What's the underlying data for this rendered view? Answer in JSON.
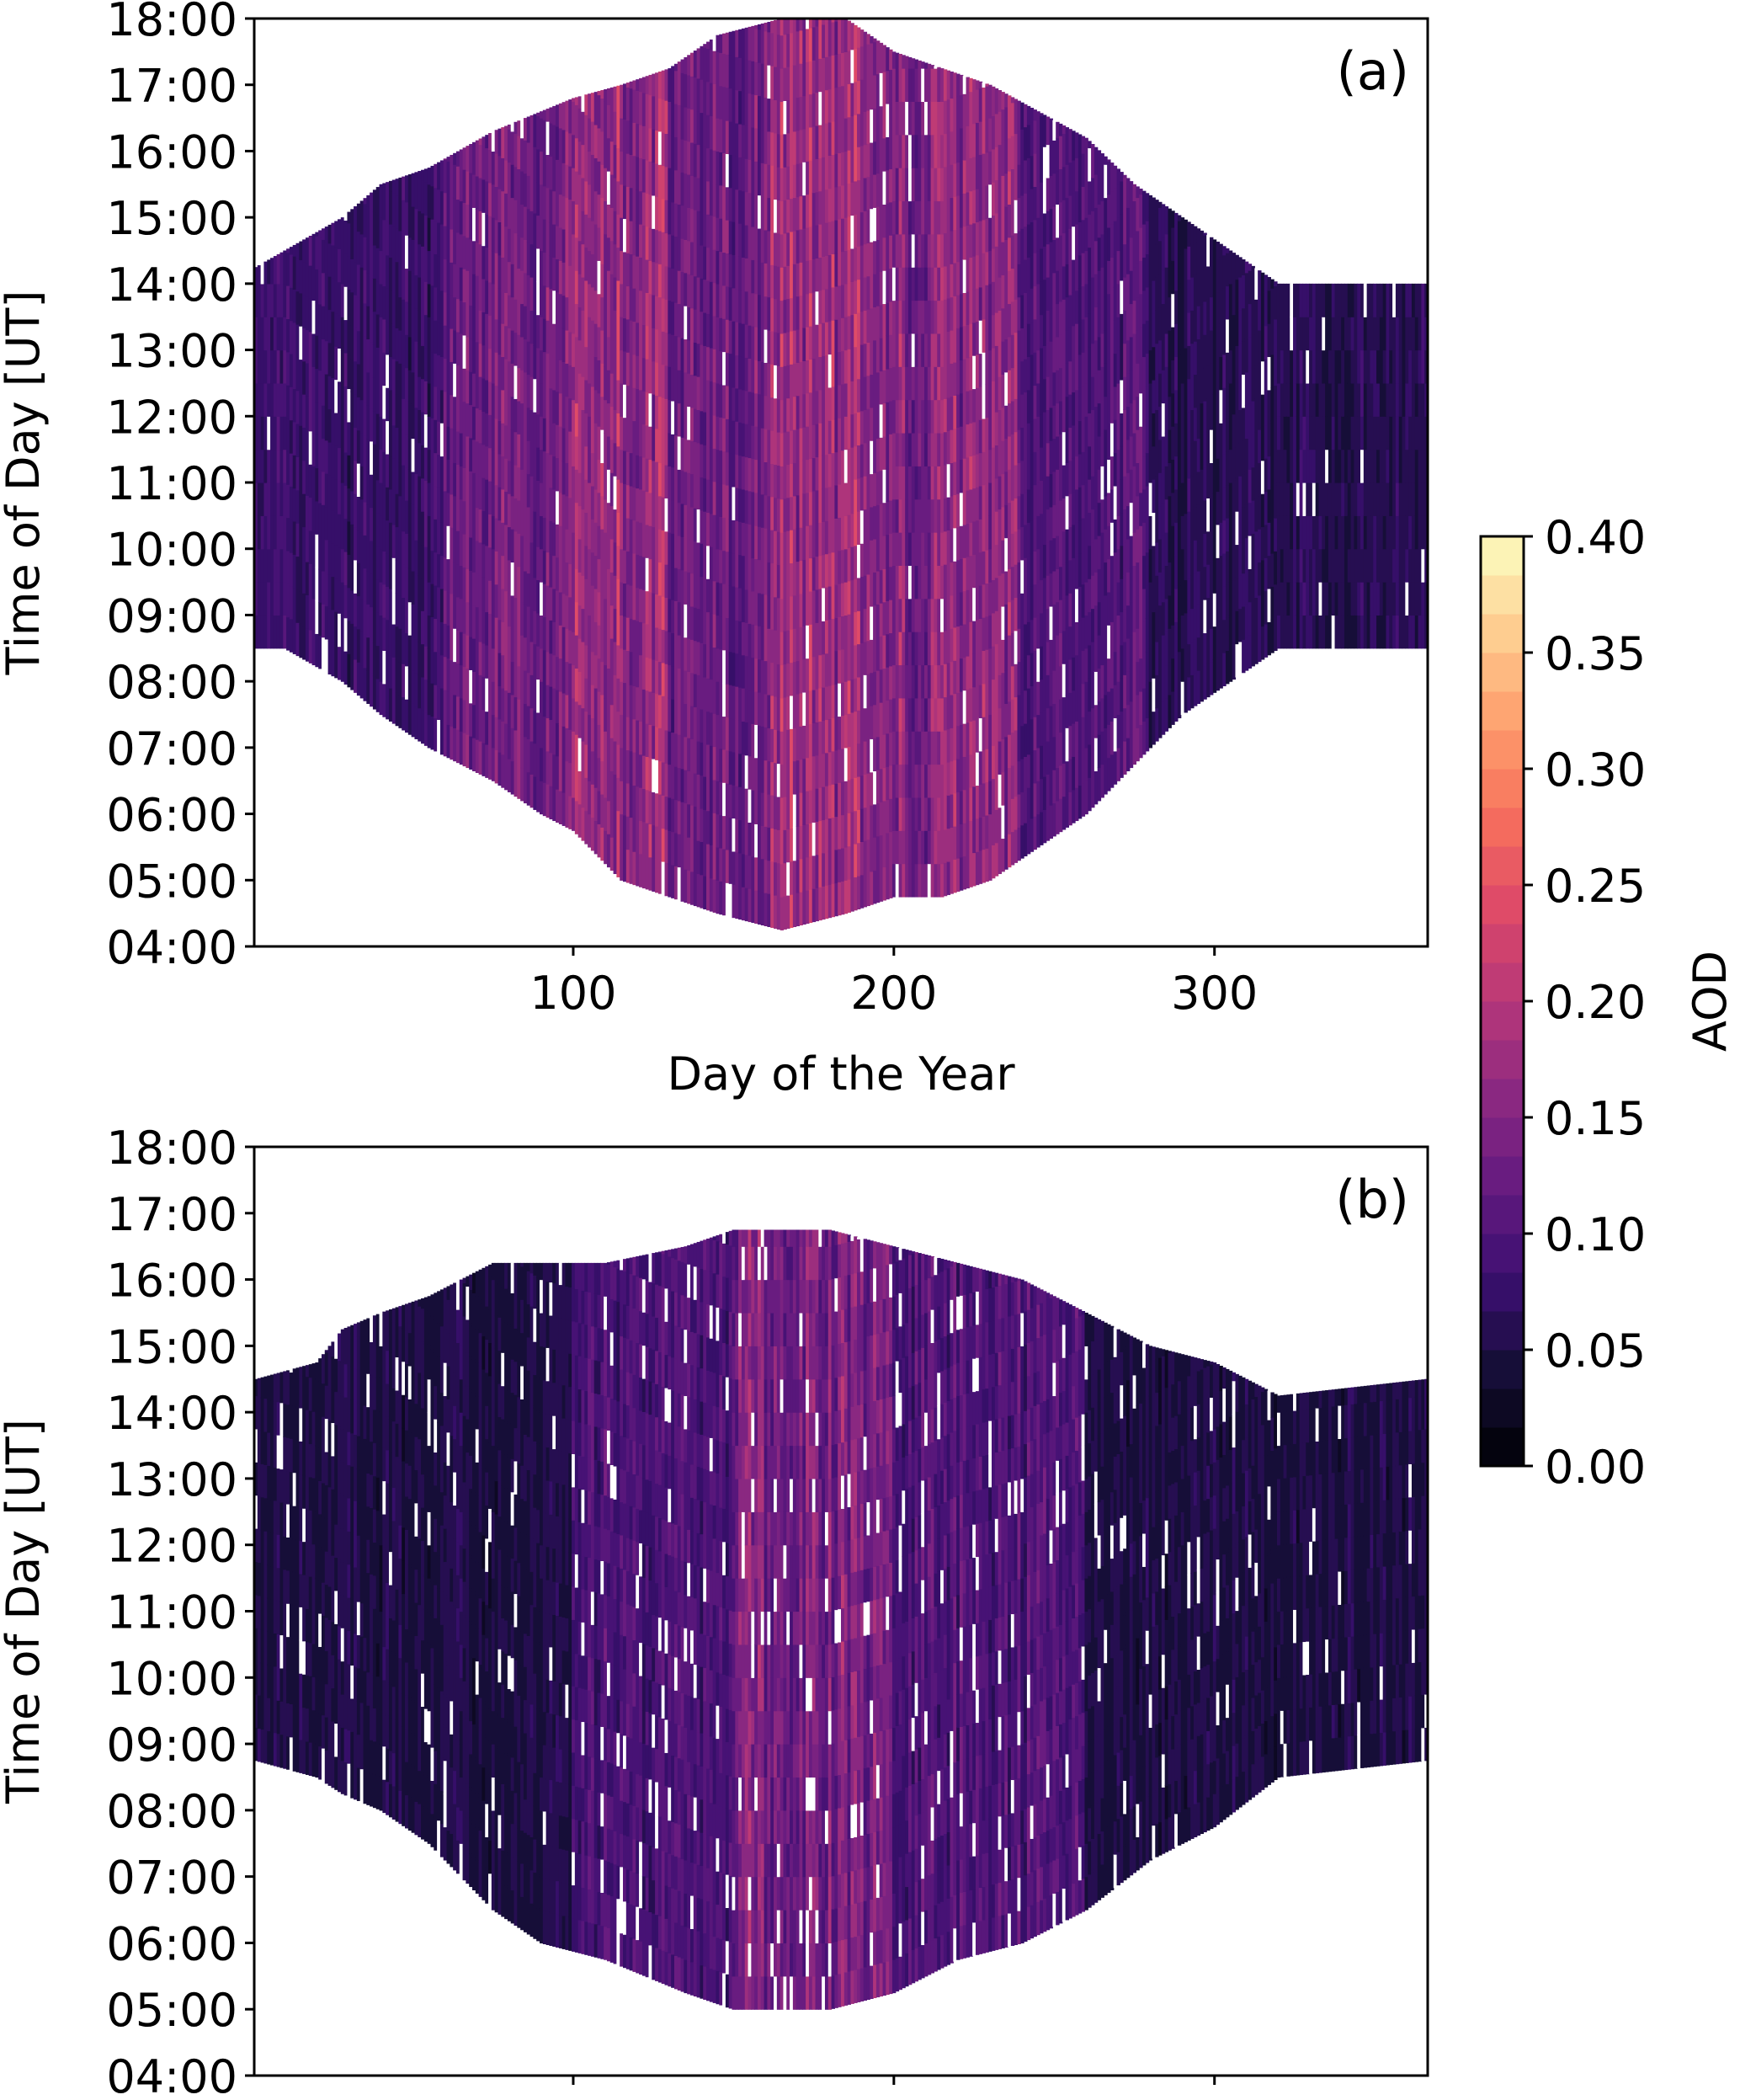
{
  "chart_data": [
    {
      "type": "heatmap",
      "panel_label": "(a)",
      "xlabel": "Day of the Year",
      "ylabel": "Time of Day [UT]",
      "xlim": [
        1,
        366
      ],
      "ylim_hours": [
        4,
        18
      ],
      "xticks": [
        100,
        200,
        300
      ],
      "xtick_labels": [
        "100",
        "200",
        "300"
      ],
      "show_xtick_labels": true,
      "yticks": [
        "04:00",
        "05:00",
        "06:00",
        "07:00",
        "08:00",
        "09:00",
        "10:00",
        "11:00",
        "12:00",
        "13:00",
        "14:00",
        "15:00",
        "16:00",
        "17:00",
        "18:00"
      ],
      "envelope": [
        {
          "day": 1,
          "start": 8.5,
          "end": 14.25
        },
        {
          "day": 10,
          "start": 8.5,
          "end": 14.5
        },
        {
          "day": 28,
          "start": 8.0,
          "end": 15.0
        },
        {
          "day": 40,
          "start": 7.5,
          "end": 15.5
        },
        {
          "day": 55,
          "start": 7.0,
          "end": 15.75
        },
        {
          "day": 75,
          "start": 6.5,
          "end": 16.3
        },
        {
          "day": 90,
          "start": 6.0,
          "end": 16.6
        },
        {
          "day": 100,
          "start": 5.75,
          "end": 16.8
        },
        {
          "day": 115,
          "start": 5.0,
          "end": 17.0
        },
        {
          "day": 130,
          "start": 4.75,
          "end": 17.25
        },
        {
          "day": 145,
          "start": 4.5,
          "end": 17.75
        },
        {
          "day": 165,
          "start": 4.25,
          "end": 18.0
        },
        {
          "day": 185,
          "start": 4.5,
          "end": 18.0
        },
        {
          "day": 200,
          "start": 4.75,
          "end": 17.5
        },
        {
          "day": 215,
          "start": 4.75,
          "end": 17.25
        },
        {
          "day": 230,
          "start": 5.0,
          "end": 17.0
        },
        {
          "day": 245,
          "start": 5.5,
          "end": 16.6
        },
        {
          "day": 260,
          "start": 6.0,
          "end": 16.2
        },
        {
          "day": 275,
          "start": 6.75,
          "end": 15.5
        },
        {
          "day": 290,
          "start": 7.5,
          "end": 15.0
        },
        {
          "day": 305,
          "start": 8.0,
          "end": 14.5
        },
        {
          "day": 320,
          "start": 8.5,
          "end": 14.0
        },
        {
          "day": 366,
          "start": 8.5,
          "end": 14.0
        }
      ],
      "mean_aod_by_period": [
        {
          "from": 1,
          "to": 60,
          "aod": 0.075
        },
        {
          "from": 60,
          "to": 100,
          "aod": 0.13
        },
        {
          "from": 100,
          "to": 130,
          "aod": 0.17
        },
        {
          "from": 130,
          "to": 160,
          "aod": 0.13
        },
        {
          "from": 160,
          "to": 200,
          "aod": 0.17
        },
        {
          "from": 200,
          "to": 240,
          "aod": 0.15
        },
        {
          "from": 240,
          "to": 280,
          "aod": 0.1
        },
        {
          "from": 280,
          "to": 366,
          "aod": 0.06
        }
      ],
      "gap_fraction": 0.03
    },
    {
      "type": "heatmap",
      "panel_label": "(b)",
      "xlabel": "",
      "ylabel": "Time of Day [UT]",
      "xlim": [
        1,
        366
      ],
      "ylim_hours": [
        4,
        18
      ],
      "xticks": [
        100,
        200,
        300
      ],
      "xtick_labels": [
        "",
        "",
        ""
      ],
      "show_xtick_labels": false,
      "yticks": [
        "04:00",
        "05:00",
        "06:00",
        "07:00",
        "08:00",
        "09:00",
        "10:00",
        "11:00",
        "12:00",
        "13:00",
        "14:00",
        "15:00",
        "16:00",
        "17:00",
        "18:00"
      ],
      "envelope": [
        {
          "day": 1,
          "start": 8.75,
          "end": 14.5
        },
        {
          "day": 20,
          "start": 8.5,
          "end": 14.75
        },
        {
          "day": 28,
          "start": 8.25,
          "end": 15.25
        },
        {
          "day": 40,
          "start": 8.0,
          "end": 15.5
        },
        {
          "day": 55,
          "start": 7.5,
          "end": 15.75
        },
        {
          "day": 65,
          "start": 7.0,
          "end": 16.0
        },
        {
          "day": 75,
          "start": 6.5,
          "end": 16.25
        },
        {
          "day": 90,
          "start": 6.0,
          "end": 16.25
        },
        {
          "day": 110,
          "start": 5.75,
          "end": 16.25
        },
        {
          "day": 135,
          "start": 5.25,
          "end": 16.5
        },
        {
          "day": 150,
          "start": 5.0,
          "end": 16.75
        },
        {
          "day": 180,
          "start": 5.0,
          "end": 16.75
        },
        {
          "day": 200,
          "start": 5.25,
          "end": 16.5
        },
        {
          "day": 220,
          "start": 5.75,
          "end": 16.25
        },
        {
          "day": 240,
          "start": 6.0,
          "end": 16.0
        },
        {
          "day": 260,
          "start": 6.5,
          "end": 15.5
        },
        {
          "day": 280,
          "start": 7.25,
          "end": 15.0
        },
        {
          "day": 300,
          "start": 7.75,
          "end": 14.75
        },
        {
          "day": 320,
          "start": 8.5,
          "end": 14.25
        },
        {
          "day": 366,
          "start": 8.75,
          "end": 14.5
        }
      ],
      "mean_aod_by_period": [
        {
          "from": 1,
          "to": 100,
          "aod": 0.05
        },
        {
          "from": 100,
          "to": 150,
          "aod": 0.09
        },
        {
          "from": 150,
          "to": 200,
          "aod": 0.14
        },
        {
          "from": 200,
          "to": 260,
          "aod": 0.1
        },
        {
          "from": 260,
          "to": 366,
          "aod": 0.05
        }
      ],
      "gap_fraction": 0.05
    }
  ],
  "colorbar": {
    "label": "AOD",
    "min": 0.0,
    "max": 0.4,
    "levels": 24,
    "ticks": [
      "0.00",
      "0.05",
      "0.10",
      "0.15",
      "0.20",
      "0.25",
      "0.30",
      "0.35",
      "0.40"
    ],
    "colormap_stops": [
      "#000004",
      "#140e36",
      "#3b0f70",
      "#641a80",
      "#8c2981",
      "#b73779",
      "#de4968",
      "#f7705c",
      "#fe9f6d",
      "#fecf92",
      "#fcfdbf"
    ]
  }
}
